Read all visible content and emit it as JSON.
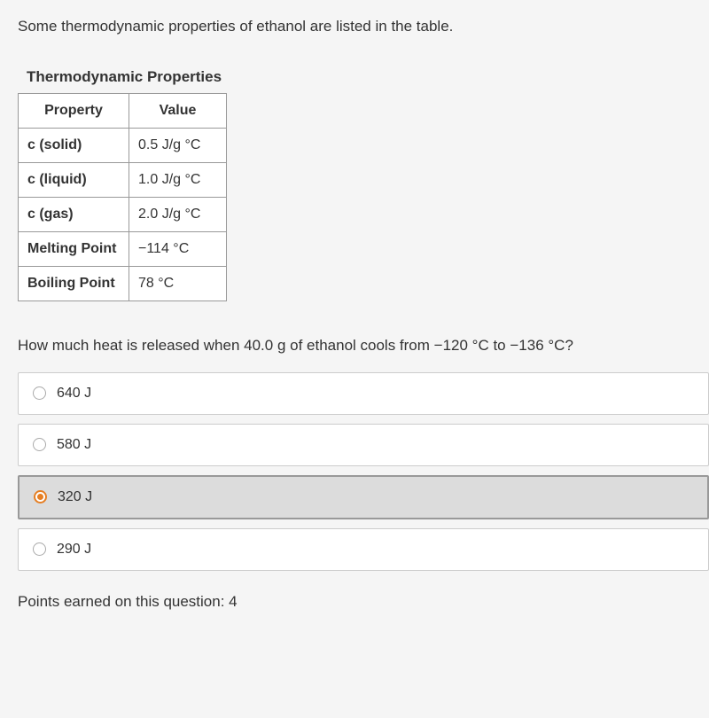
{
  "question_intro": "Some thermodynamic properties of ethanol are listed in the table.",
  "table": {
    "title": "Thermodynamic Properties",
    "columns": [
      "Property",
      "Value"
    ],
    "rows": [
      [
        "c (solid)",
        "0.5 J/g °C"
      ],
      [
        "c (liquid)",
        "1.0 J/g °C"
      ],
      [
        "c (gas)",
        "2.0 J/g °C"
      ],
      [
        "Melting Point",
        "−114 °C"
      ],
      [
        "Boiling Point",
        "78 °C"
      ]
    ],
    "col_widths": [
      "125px",
      "110px"
    ]
  },
  "question_prompt": "How much heat is released when 40.0 g of ethanol cools from −120 °C to −136 °C?",
  "options": [
    {
      "label": "640 J",
      "selected": false
    },
    {
      "label": "580 J",
      "selected": false
    },
    {
      "label": "320 J",
      "selected": true
    },
    {
      "label": "290 J",
      "selected": false
    }
  ],
  "points_text": "Points earned on this question: 4",
  "colors": {
    "background": "#f5f5f5",
    "text": "#333333",
    "border": "#999999",
    "option_bg": "#ffffff",
    "option_border": "#cccccc",
    "selected_bg": "#dcdcdc",
    "selected_border": "#999999",
    "radio_accent": "#e67e22"
  }
}
